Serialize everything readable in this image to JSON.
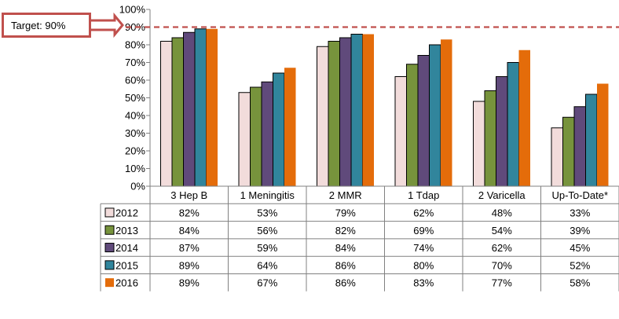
{
  "target_label": "Target: 90%",
  "colors": {
    "series": [
      "#f2dcdb",
      "#77933c",
      "#604a7b",
      "#31859c",
      "#e46c0a"
    ],
    "target_line": "#c0504d",
    "grid": "#808080"
  },
  "chart_data": {
    "type": "bar",
    "categories": [
      "3 Hep B",
      "1 Meningitis",
      "2 MMR",
      "1 Tdap",
      "2 Varicella",
      "Up-To-Date*"
    ],
    "series": [
      {
        "name": "2012",
        "values": [
          82,
          53,
          79,
          62,
          48,
          33
        ]
      },
      {
        "name": "2013",
        "values": [
          84,
          56,
          82,
          69,
          54,
          39
        ]
      },
      {
        "name": "2014",
        "values": [
          87,
          59,
          84,
          74,
          62,
          45
        ]
      },
      {
        "name": "2015",
        "values": [
          89,
          64,
          86,
          80,
          70,
          52
        ]
      },
      {
        "name": "2016",
        "values": [
          89,
          67,
          86,
          83,
          77,
          58
        ]
      }
    ],
    "ylim": [
      0,
      100
    ],
    "yticks": [
      "0%",
      "10%",
      "20%",
      "30%",
      "40%",
      "50%",
      "60%",
      "70%",
      "80%",
      "90%",
      "100%"
    ],
    "value_suffix": "%",
    "target": 90,
    "legend": "data-table-rows",
    "grid": false
  }
}
